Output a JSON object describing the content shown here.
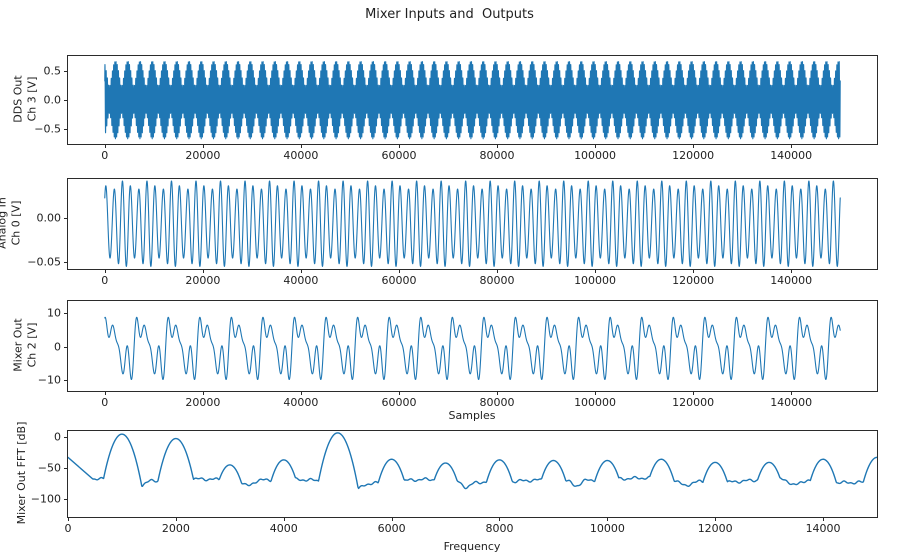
{
  "figure": {
    "title": "Mixer Inputs and  Outputs",
    "background": "#ffffff",
    "line_color": "#1f77b4",
    "spine_color": "#2b2b2b",
    "text_color": "#1f1f1f"
  },
  "chart_data": [
    {
      "id": "dds-out",
      "type": "line",
      "ylabel_lines": [
        "DDS Out",
        "Ch 3 [V]"
      ],
      "xlabel": "",
      "xlim": [
        -7500,
        157500
      ],
      "ylim": [
        -0.76,
        0.76
      ],
      "xticks": [
        {
          "v": 0,
          "label": "0"
        },
        {
          "v": 20000,
          "label": "20000"
        },
        {
          "v": 40000,
          "label": "40000"
        },
        {
          "v": 60000,
          "label": "60000"
        },
        {
          "v": 80000,
          "label": "80000"
        },
        {
          "v": 100000,
          "label": "100000"
        },
        {
          "v": 120000,
          "label": "120000"
        },
        {
          "v": 140000,
          "label": "140000"
        }
      ],
      "yticks": [
        {
          "v": 0.5,
          "label": "0.5"
        },
        {
          "v": 0.0,
          "label": "0.0"
        },
        {
          "v": -0.5,
          "label": "−0.5"
        }
      ],
      "description": "Two-tone DDS output: dense beat waveform, envelope from ±0.23 V to ±0.67 V, ~60 beats over 0–150000 samples",
      "signal": {
        "t_range": [
          0,
          150000
        ],
        "n_points": 12000,
        "offset": 0,
        "components": [
          {
            "amp": 0.45,
            "cycles": 600,
            "phase": 0.3
          },
          {
            "amp": 0.22,
            "cycles": 660,
            "phase": 1.1
          }
        ]
      }
    },
    {
      "id": "analog-in",
      "type": "line",
      "ylabel_lines": [
        "Analog In",
        "Ch 0 [V]"
      ],
      "xlabel": "",
      "xlim": [
        -7500,
        157500
      ],
      "ylim": [
        -0.0585,
        0.0445
      ],
      "xticks": [
        {
          "v": 0,
          "label": "0"
        },
        {
          "v": 20000,
          "label": "20000"
        },
        {
          "v": 40000,
          "label": "40000"
        },
        {
          "v": 60000,
          "label": "60000"
        },
        {
          "v": 80000,
          "label": "80000"
        },
        {
          "v": 100000,
          "label": "100000"
        },
        {
          "v": 120000,
          "label": "120000"
        },
        {
          "v": 140000,
          "label": "140000"
        }
      ],
      "yticks": [
        {
          "v": 0.0,
          "label": "0.00"
        },
        {
          "v": -0.05,
          "label": "−0.05"
        }
      ],
      "description": "Analog input sine, ~90 cycles, peaks ≈ +0.042 V to −0.057 V with slight amplitude ripple",
      "signal": {
        "t_range": [
          0,
          150000
        ],
        "n_points": 6000,
        "offset": -0.007,
        "components": [
          {
            "amp": 0.044,
            "cycles": 90,
            "phase": 0.6
          },
          {
            "amp": 0.0055,
            "cycles": 120,
            "phase": 2.0
          }
        ]
      }
    },
    {
      "id": "mixer-out",
      "type": "line",
      "ylabel_lines": [
        "Mixer Out",
        "Ch 2 [V]"
      ],
      "xlabel": "Samples",
      "xlim": [
        -7500,
        157500
      ],
      "ylim": [
        -13.2,
        13.6
      ],
      "xticks": [
        {
          "v": 0,
          "label": "0"
        },
        {
          "v": 20000,
          "label": "20000"
        },
        {
          "v": 40000,
          "label": "40000"
        },
        {
          "v": 60000,
          "label": "60000"
        },
        {
          "v": 80000,
          "label": "80000"
        },
        {
          "v": 100000,
          "label": "100000"
        },
        {
          "v": 120000,
          "label": "120000"
        },
        {
          "v": 140000,
          "label": "140000"
        }
      ],
      "yticks": [
        {
          "v": 10,
          "label": "10"
        },
        {
          "v": 0,
          "label": "0"
        },
        {
          "v": -10,
          "label": "−10"
        }
      ],
      "description": "Mixer output: multi-tone product waveform, ~23 large peaks reaching ≈ ±12 V",
      "signal": {
        "t_range": [
          0,
          150000
        ],
        "n_points": 6000,
        "offset": 0,
        "components": [
          {
            "amp": 6.0,
            "cycles": 23.3,
            "phase": 0.5
          },
          {
            "amp": 3.5,
            "cycles": 69.9,
            "phase": 1.2
          },
          {
            "amp": 2.8,
            "cycles": 93.2,
            "phase": 2.1
          },
          {
            "amp": 0.9,
            "cycles": 46.6,
            "phase": 0.0
          }
        ]
      }
    },
    {
      "id": "mixer-out-fft",
      "type": "line",
      "ylabel_lines": [
        "Mixer Out FFT [dB]"
      ],
      "xlabel": "Frequency",
      "xlim": [
        0,
        15000
      ],
      "ylim": [
        -128,
        9
      ],
      "xticks": [
        {
          "v": 0,
          "label": "0"
        },
        {
          "v": 2000,
          "label": "2000"
        },
        {
          "v": 4000,
          "label": "4000"
        },
        {
          "v": 6000,
          "label": "6000"
        },
        {
          "v": 8000,
          "label": "8000"
        },
        {
          "v": 10000,
          "label": "10000"
        },
        {
          "v": 12000,
          "label": "12000"
        },
        {
          "v": 14000,
          "label": "14000"
        }
      ],
      "yticks": [
        {
          "v": 0,
          "label": "0"
        },
        {
          "v": -50,
          "label": "−50"
        },
        {
          "v": -100,
          "label": "−100"
        }
      ],
      "description": "FFT of mixer output: noise floor ≈ −70 dB with dips to ≈ −85 dB; spectral peaks every 1000 Hz",
      "fft": {
        "baseline_db": -70,
        "edge_db": -33,
        "peaks": [
          {
            "f": 1000,
            "db": 4
          },
          {
            "f": 2000,
            "db": -3
          },
          {
            "f": 3000,
            "db": -45
          },
          {
            "f": 4000,
            "db": -37
          },
          {
            "f": 5000,
            "db": 6
          },
          {
            "f": 6000,
            "db": -36
          },
          {
            "f": 7000,
            "db": -42
          },
          {
            "f": 8000,
            "db": -37
          },
          {
            "f": 9000,
            "db": -38
          },
          {
            "f": 10000,
            "db": -38
          },
          {
            "f": 11000,
            "db": -36
          },
          {
            "f": 12000,
            "db": -41
          },
          {
            "f": 13000,
            "db": -41
          },
          {
            "f": 14000,
            "db": -36
          },
          {
            "f": 15000,
            "db": -33
          }
        ]
      }
    }
  ]
}
